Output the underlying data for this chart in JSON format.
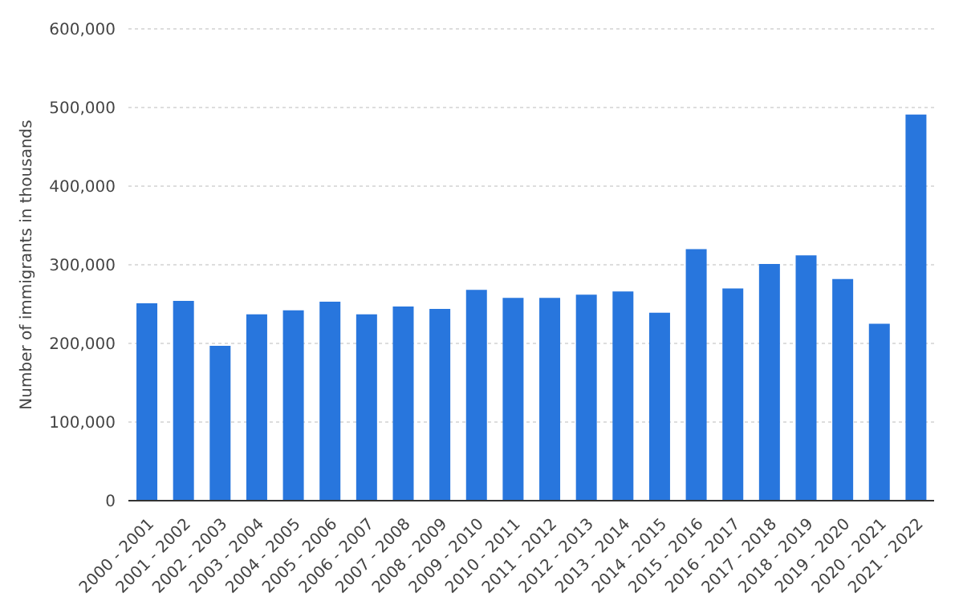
{
  "chart_data": {
    "type": "bar",
    "ylabel": "Number of immigrants in thousands",
    "categories": [
      "2000 - 2001",
      "2001 - 2002",
      "2002 - 2003",
      "2003 - 2004",
      "2004 - 2005",
      "2005 - 2006",
      "2006 - 2007",
      "2007 - 2008",
      "2008 - 2009",
      "2009 - 2010",
      "2010 - 2011",
      "2011 - 2012",
      "2012 - 2013",
      "2013 - 2014",
      "2014 - 2015",
      "2015 - 2016",
      "2016 - 2017",
      "2017 - 2018",
      "2018 - 2019",
      "2019 - 2020",
      "2020 - 2021",
      "2021 - 2022"
    ],
    "values": [
      251000,
      254000,
      197000,
      237000,
      242000,
      253000,
      237000,
      247000,
      244000,
      268000,
      258000,
      258000,
      262000,
      266000,
      239000,
      320000,
      270000,
      301000,
      312000,
      282000,
      225000,
      491000
    ],
    "color": "#2876dd",
    "ylim": [
      0,
      600000
    ],
    "yticks": [
      0,
      {
        "value": 100000,
        "label": "100,000"
      },
      {
        "value": 200000,
        "label": "200,000"
      },
      {
        "value": 300000,
        "label": "300,000"
      },
      {
        "value": 400000,
        "label": "400,000"
      },
      {
        "value": 500000,
        "label": "500,000"
      },
      {
        "value": 600000,
        "label": "600,000"
      }
    ],
    "grid": "y"
  }
}
